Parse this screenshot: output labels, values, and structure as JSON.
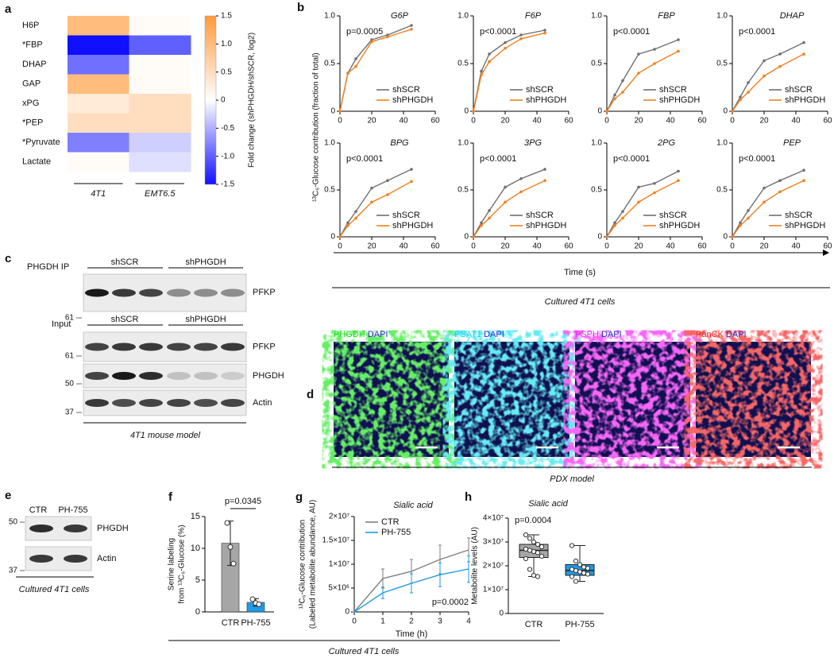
{
  "panel_labels": [
    "a",
    "b",
    "c",
    "d",
    "e",
    "f",
    "g",
    "h"
  ],
  "chart_data": [
    {
      "type": "heatmap",
      "rows": [
        "H6P",
        "*FBP",
        "DHAP",
        "GAP",
        "xPG",
        "*PEP",
        "*Pyruvate",
        "Lactate"
      ],
      "columns": [
        "4T1",
        "EMT6.5"
      ],
      "values": [
        [
          1.0,
          0.05
        ],
        [
          -1.5,
          -1.0
        ],
        [
          -0.9,
          0.05
        ],
        [
          1.0,
          0.05
        ],
        [
          0.3,
          0.5
        ],
        [
          0.5,
          0.5
        ],
        [
          -0.8,
          -0.3
        ],
        [
          0.05,
          -0.2
        ]
      ],
      "colormap": [
        "#1010ff",
        "#ffffff",
        "#ff9a3c"
      ],
      "zlim": [
        -1.5,
        1.5
      ],
      "zticks": [
        1.5,
        {
          "value": 1,
          "label": "1.0"
        },
        0.5,
        0,
        -0.5,
        {
          "value": -1,
          "label": "-1.0"
        },
        -1.5
      ],
      "colorbar_label": "Fold change (shPHGDH/shSCR, log2)"
    },
    {
      "type": "line",
      "title": "G6P",
      "annotation": "p=0.0005",
      "markers": true,
      "x": [
        0,
        5,
        10,
        20,
        30,
        45
      ],
      "series": [
        {
          "name": "shSCR",
          "color": "#707070",
          "values": [
            0,
            0.4,
            0.55,
            0.75,
            0.8,
            0.9
          ]
        },
        {
          "name": "shPHGDH",
          "color": "#f08020",
          "values": [
            0,
            0.4,
            0.47,
            0.73,
            0.78,
            0.86
          ]
        }
      ],
      "xlim": [
        0,
        60
      ],
      "xticks": [
        0,
        20,
        40,
        60
      ],
      "ylim": [
        0,
        1
      ],
      "yticks": [
        0,
        0.5,
        {
          "value": 1,
          "label": "1.0"
        }
      ]
    },
    {
      "type": "line",
      "title": "F6P",
      "annotation": "p<0.0001",
      "markers": true,
      "x": [
        0,
        5,
        10,
        20,
        30,
        45
      ],
      "series": [
        {
          "name": "shSCR",
          "color": "#707070",
          "values": [
            0,
            0.42,
            0.6,
            0.72,
            0.8,
            0.85
          ]
        },
        {
          "name": "shPHGDH",
          "color": "#f08020",
          "values": [
            0,
            0.38,
            0.52,
            0.66,
            0.76,
            0.82
          ]
        }
      ],
      "xlim": [
        0,
        60
      ],
      "xticks": [
        0,
        20,
        40,
        60
      ],
      "ylim": [
        0,
        1
      ],
      "yticks": [
        0,
        0.5,
        {
          "value": 1,
          "label": "1.0"
        }
      ]
    },
    {
      "type": "line",
      "title": "FBP",
      "annotation": "p<0.0001",
      "markers": true,
      "x": [
        0,
        5,
        10,
        20,
        30,
        45
      ],
      "series": [
        {
          "name": "shSCR",
          "color": "#707070",
          "values": [
            0,
            0.17,
            0.32,
            0.6,
            0.65,
            0.75
          ]
        },
        {
          "name": "shPHGDH",
          "color": "#f08020",
          "values": [
            0,
            0.13,
            0.2,
            0.4,
            0.5,
            0.63
          ]
        }
      ],
      "xlim": [
        0,
        60
      ],
      "xticks": [
        0,
        20,
        40,
        60
      ],
      "ylim": [
        0,
        1
      ],
      "yticks": [
        0,
        0.5,
        {
          "value": 1,
          "label": "1.0"
        }
      ]
    },
    {
      "type": "line",
      "title": "DHAP",
      "annotation": "p<0.0001",
      "markers": true,
      "x": [
        0,
        5,
        10,
        20,
        30,
        45
      ],
      "series": [
        {
          "name": "shSCR",
          "color": "#707070",
          "values": [
            0,
            0.15,
            0.3,
            0.53,
            0.6,
            0.72
          ]
        },
        {
          "name": "shPHGDH",
          "color": "#f08020",
          "values": [
            0,
            0.12,
            0.2,
            0.37,
            0.47,
            0.6
          ]
        }
      ],
      "xlim": [
        0,
        60
      ],
      "xticks": [
        0,
        20,
        40,
        60
      ],
      "ylim": [
        0,
        1
      ],
      "yticks": [
        0,
        0.5,
        {
          "value": 1,
          "label": "1.0"
        }
      ]
    },
    {
      "type": "line",
      "title": "BPG",
      "annotation": "p<0.0001",
      "markers": true,
      "x": [
        0,
        5,
        10,
        20,
        30,
        45
      ],
      "series": [
        {
          "name": "shSCR",
          "color": "#707070",
          "values": [
            0,
            0.15,
            0.27,
            0.52,
            0.6,
            0.72
          ]
        },
        {
          "name": "shPHGDH",
          "color": "#f08020",
          "values": [
            0,
            0.12,
            0.2,
            0.37,
            0.45,
            0.59
          ]
        }
      ],
      "xlim": [
        0,
        60
      ],
      "xticks": [
        0,
        20,
        40,
        60
      ],
      "ylim": [
        0,
        1
      ],
      "yticks": [
        0,
        0.5,
        {
          "value": 1,
          "label": "1.0"
        }
      ]
    },
    {
      "type": "line",
      "title": "3PG",
      "annotation": "p<0.0001",
      "markers": true,
      "x": [
        0,
        5,
        10,
        20,
        30,
        45
      ],
      "series": [
        {
          "name": "shSCR",
          "color": "#707070",
          "values": [
            0,
            0.15,
            0.28,
            0.53,
            0.62,
            0.72
          ]
        },
        {
          "name": "shPHGDH",
          "color": "#f08020",
          "values": [
            0,
            0.12,
            0.2,
            0.37,
            0.48,
            0.6
          ]
        }
      ],
      "xlim": [
        0,
        60
      ],
      "xticks": [
        0,
        20,
        40,
        60
      ],
      "ylim": [
        0,
        1
      ],
      "yticks": [
        0,
        0.5,
        {
          "value": 1,
          "label": "1.0"
        }
      ]
    },
    {
      "type": "line",
      "title": "2PG",
      "annotation": "p<0.0001",
      "markers": true,
      "x": [
        0,
        5,
        10,
        20,
        30,
        45
      ],
      "series": [
        {
          "name": "shSCR",
          "color": "#707070",
          "values": [
            0,
            0.15,
            0.27,
            0.53,
            0.57,
            0.7
          ]
        },
        {
          "name": "shPHGDH",
          "color": "#f08020",
          "values": [
            0,
            0.12,
            0.2,
            0.37,
            0.47,
            0.6
          ]
        }
      ],
      "xlim": [
        0,
        60
      ],
      "xticks": [
        0,
        20,
        40,
        60
      ],
      "ylim": [
        0,
        1
      ],
      "yticks": [
        0,
        0.5,
        {
          "value": 1,
          "label": "1.0"
        }
      ]
    },
    {
      "type": "line",
      "title": "PEP",
      "annotation": "p<0.0001",
      "markers": true,
      "x": [
        0,
        5,
        10,
        20,
        30,
        45
      ],
      "series": [
        {
          "name": "shSCR",
          "color": "#707070",
          "values": [
            0,
            0.15,
            0.28,
            0.52,
            0.6,
            0.71
          ]
        },
        {
          "name": "shPHGDH",
          "color": "#f08020",
          "values": [
            0,
            0.12,
            0.2,
            0.37,
            0.48,
            0.6
          ]
        }
      ],
      "xlim": [
        0,
        60
      ],
      "xticks": [
        0,
        20,
        40,
        60
      ],
      "ylim": [
        0,
        1
      ],
      "yticks": [
        0,
        0.5,
        {
          "value": 1,
          "label": "1.0"
        }
      ]
    },
    {
      "type": "bar",
      "categories": [
        "CTR",
        "PH-755"
      ],
      "values": [
        10.8,
        1.5
      ],
      "errors": [
        3.5,
        0.6
      ],
      "points": [
        [
          14,
          10.2,
          7.6
        ],
        [
          2,
          1.4,
          1.2
        ]
      ],
      "colors": [
        "#a6a6a6",
        "#1e9be6"
      ],
      "y_label": [
        "Serine labeling",
        "from ¹³C₆-Glucose (%)"
      ],
      "annotation": "p=0.0345",
      "ylim": [
        0,
        15
      ],
      "yticks": [
        0,
        5,
        10,
        15
      ]
    },
    {
      "type": "line",
      "title": "Sialic acid",
      "annotation": "p=0.0002",
      "markers": false,
      "x": [
        0,
        1,
        2,
        3,
        4
      ],
      "x_label": "Time (h)",
      "y_label": [
        "¹³C₆-Glucose contribution",
        "(Labeled metabolite abundance, AU)"
      ],
      "series": [
        {
          "name": "CTR",
          "color": "#7f7f7f",
          "values": [
            0,
            7000000,
            8500000,
            11000000,
            13000000
          ],
          "errors": [
            0,
            2000000,
            2500000,
            3000000,
            2500000
          ]
        },
        {
          "name": "PH-755",
          "color": "#1e9be6",
          "values": [
            0,
            4000000,
            6000000,
            7800000,
            9000000
          ],
          "errors": [
            0,
            1200000,
            2000000,
            2500000,
            2800000
          ]
        }
      ],
      "xlim": [
        0,
        4
      ],
      "xticks": [
        0,
        1,
        2,
        3,
        4
      ],
      "ylim": [
        0,
        20000000
      ],
      "yticks": [
        0,
        {
          "value": 5000000,
          "label": "5×10⁶"
        },
        {
          "value": 10000000,
          "label": "1×10⁷"
        },
        {
          "value": 15000000,
          "label": "1.5×10⁷"
        },
        {
          "value": 20000000,
          "label": "2×10⁷"
        }
      ]
    },
    {
      "type": "box",
      "title": "Sialic acid",
      "annotation": "p=0.0004",
      "categories": [
        "CTR",
        "PH-755"
      ],
      "colors": [
        "#a6a6a6",
        "#1e9be6"
      ],
      "boxes": [
        {
          "min": 15500000,
          "q1": 23500000,
          "median": 26500000,
          "q3": 29000000,
          "max": 33000000,
          "points": [
            33000000,
            31500000,
            30000000,
            29000000,
            28000000,
            27000000,
            26500000,
            26000000,
            25500000,
            24000000,
            23000000,
            18500000,
            16000000,
            15500000
          ]
        },
        {
          "min": 13500000,
          "q1": 16000000,
          "median": 18000000,
          "q3": 20500000,
          "max": 28500000,
          "points": [
            28500000,
            22000000,
            20500000,
            19500000,
            19000000,
            18500000,
            18000000,
            17500000,
            17000000,
            16500000,
            15500000,
            13500000
          ]
        }
      ],
      "y_label": "Metabolite levels (AU)",
      "ylim": [
        0,
        40000000
      ],
      "yticks": [
        0,
        {
          "value": 10000000,
          "label": "1×10⁷"
        },
        {
          "value": 20000000,
          "label": "2×10⁷"
        },
        {
          "value": 30000000,
          "label": "3×10⁷"
        },
        {
          "value": 40000000,
          "label": "4×10⁷"
        }
      ]
    }
  ],
  "panel_b": {
    "y_label": "¹³C₆-Glucose contribution (fraction of total)",
    "x_label": "Time (s)",
    "caption": "Cultured 4T1 cells"
  },
  "panel_c": {
    "ip_label": "PHGDH IP",
    "input_label": "Input",
    "groups": [
      "shSCR",
      "shPHGDH"
    ],
    "ip_blot": {
      "protein": "PFKP",
      "marker": "61"
    },
    "input_blots": [
      {
        "protein": "PFKP",
        "marker": "61"
      },
      {
        "protein": "PHGDH",
        "marker": "50"
      },
      {
        "protein": "Actin",
        "marker": "37"
      }
    ],
    "caption": "4T1 mouse model"
  },
  "panel_d": {
    "images": [
      {
        "stain": "PHGDH",
        "color": "#22dd22",
        "counterstain": "DAPI"
      },
      {
        "stain": "PSAT1",
        "color": "#22d3e6",
        "counterstain": "DAPI"
      },
      {
        "stain": "PSPH",
        "color": "#ee22ee",
        "counterstain": "DAPI"
      },
      {
        "stain": "PanCK",
        "color": "#ee2222",
        "counterstain": "DAPI"
      }
    ],
    "counterstain_color": "#2a2ad0",
    "caption": "PDX model"
  },
  "panel_e": {
    "lanes": [
      "CTR",
      "PH-755"
    ],
    "blots": [
      {
        "protein": "PHGDH",
        "marker": "50"
      },
      {
        "protein": "Actin",
        "marker": "37"
      }
    ],
    "caption": "Cultured 4T1 cells"
  },
  "panel_fgh": {
    "caption": "Cultured 4T1 cells"
  }
}
